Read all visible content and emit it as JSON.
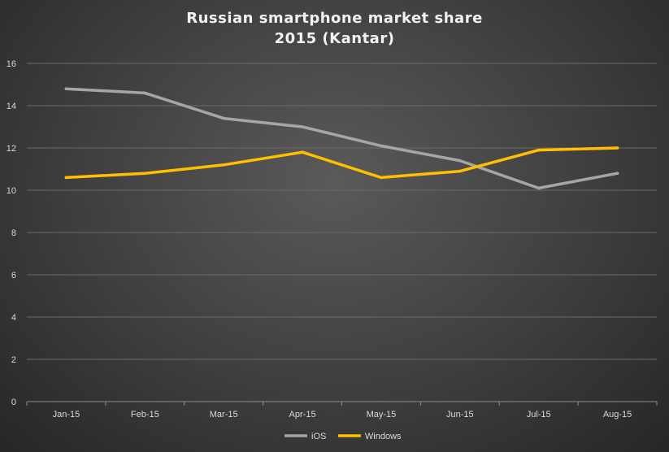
{
  "chart_data": {
    "type": "line",
    "title": "Russian smartphone market share",
    "subtitle": "2015 (Kantar)",
    "categories": [
      "Jan-15",
      "Feb-15",
      "Mar-15",
      "Apr-15",
      "May-15",
      "Jun-15",
      "Jul-15",
      "Aug-15"
    ],
    "series": [
      {
        "name": "iOS",
        "values": [
          14.8,
          14.6,
          13.4,
          13.0,
          12.1,
          11.4,
          10.1,
          10.8
        ],
        "color": "#a6a6a6"
      },
      {
        "name": "Windows",
        "values": [
          10.6,
          10.8,
          11.2,
          11.8,
          10.6,
          10.9,
          11.9,
          12.0
        ],
        "color": "#ffc000"
      }
    ],
    "y_ticks": [
      0,
      2,
      4,
      6,
      8,
      10,
      12,
      14,
      16
    ],
    "ylim": [
      0,
      16
    ],
    "grid": true,
    "legend_position": "bottom"
  }
}
